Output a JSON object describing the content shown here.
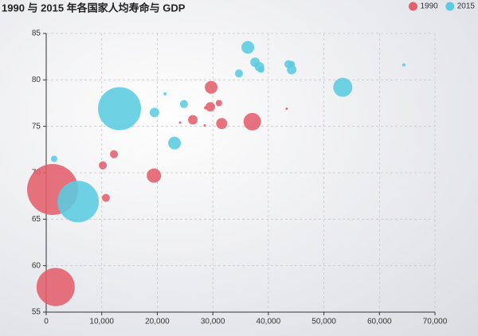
{
  "chart_data": {
    "type": "scatter",
    "title": "1990 与 2015 年各国家人均寿命与 GDP",
    "xlim": [
      0,
      70000
    ],
    "xticks": [
      0,
      {
        "value": 10000,
        "label": "10,000"
      },
      {
        "value": 20000,
        "label": "20,000"
      },
      {
        "value": 30000,
        "label": "30,000"
      },
      {
        "value": 40000,
        "label": "40,000"
      },
      {
        "value": 50000,
        "label": "50,000"
      },
      {
        "value": 60000,
        "label": "60,000"
      },
      {
        "value": 70000,
        "label": "70,000"
      }
    ],
    "ylim": [
      55,
      85
    ],
    "yticks": [
      55,
      60,
      65,
      70,
      75,
      80,
      85
    ],
    "grid": true,
    "legend": "top-right",
    "series": [
      {
        "name": "1990",
        "color": "#e25f6c",
        "x": [
          1150,
          1700,
          10200,
          12200,
          10750,
          19400,
          29700,
          29550,
          28700,
          26400,
          31600,
          31100,
          37100,
          28550,
          43300,
          24100
        ],
        "values": [
          68.2,
          57.7,
          70.8,
          72.0,
          67.3,
          69.7,
          79.2,
          77.1,
          77.0,
          75.7,
          75.3,
          77.5,
          75.5,
          75.1,
          76.9,
          75.4
        ],
        "sizes": [
          1264,
          711,
          31,
          31,
          31,
          100,
          79,
          44,
          5,
          44,
          60,
          20,
          149,
          3,
          3,
          3
        ]
      },
      {
        "name": "2015",
        "color": "#5bcbe0",
        "x": [
          13200,
          5740,
          1430,
          19500,
          21400,
          24800,
          23100,
          34700,
          36300,
          37600,
          38400,
          38700,
          43600,
          44200,
          44200,
          53400,
          64400
        ],
        "values": [
          76.9,
          66.9,
          71.5,
          76.5,
          78.5,
          77.4,
          73.2,
          80.7,
          83.5,
          81.9,
          81.4,
          81.1,
          81.7,
          81.7,
          81.1,
          79.2,
          81.6
        ],
        "sizes": [
          900,
          835,
          20,
          44,
          5,
          31,
          79,
          31,
          79,
          44,
          44,
          20,
          31,
          20,
          44,
          178,
          5
        ]
      }
    ]
  }
}
